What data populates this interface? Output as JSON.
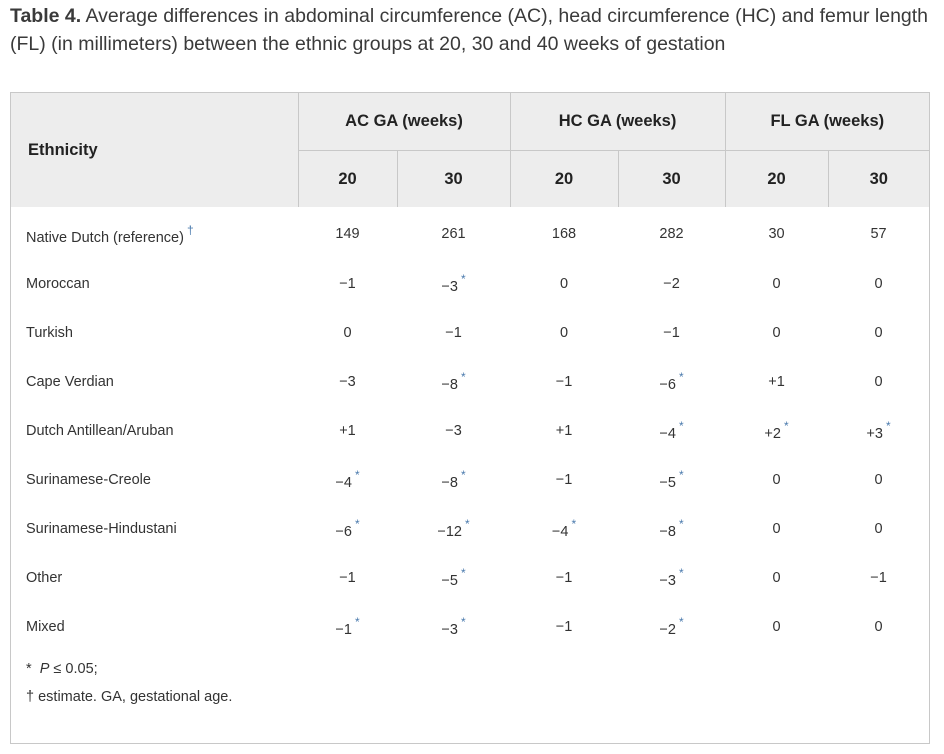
{
  "caption": {
    "label": "Table 4.",
    "text": " Average differences in abdominal circumference (AC), head circumference (HC) and femur length (FL) (in millimeters) between the ethnic groups at 20, 30 and 40 weeks of gestation"
  },
  "table": {
    "ethnicity_header": "Ethnicity",
    "groups": [
      "AC GA (weeks)",
      "HC GA (weeks)",
      "FL GA (weeks)"
    ],
    "weeks": [
      "20",
      "30",
      "20",
      "30",
      "20",
      "30"
    ],
    "rows": [
      {
        "ethnicity": "Native Dutch (reference)",
        "eth_mark": "†",
        "cells": [
          {
            "v": "149",
            "m": ""
          },
          {
            "v": "261",
            "m": ""
          },
          {
            "v": "168",
            "m": ""
          },
          {
            "v": "282",
            "m": ""
          },
          {
            "v": "30",
            "m": ""
          },
          {
            "v": "57",
            "m": ""
          }
        ]
      },
      {
        "ethnicity": "Moroccan",
        "eth_mark": "",
        "cells": [
          {
            "v": "−1",
            "m": ""
          },
          {
            "v": "−3",
            "m": "*"
          },
          {
            "v": "0",
            "m": ""
          },
          {
            "v": "−2",
            "m": ""
          },
          {
            "v": "0",
            "m": ""
          },
          {
            "v": "0",
            "m": ""
          }
        ]
      },
      {
        "ethnicity": "Turkish",
        "eth_mark": "",
        "cells": [
          {
            "v": "0",
            "m": ""
          },
          {
            "v": "−1",
            "m": ""
          },
          {
            "v": "0",
            "m": ""
          },
          {
            "v": "−1",
            "m": ""
          },
          {
            "v": "0",
            "m": ""
          },
          {
            "v": "0",
            "m": ""
          }
        ]
      },
      {
        "ethnicity": "Cape Verdian",
        "eth_mark": "",
        "cells": [
          {
            "v": "−3",
            "m": ""
          },
          {
            "v": "−8",
            "m": "*"
          },
          {
            "v": "−1",
            "m": ""
          },
          {
            "v": "−6",
            "m": "*"
          },
          {
            "v": "+1",
            "m": ""
          },
          {
            "v": "0",
            "m": ""
          }
        ]
      },
      {
        "ethnicity": "Dutch Antillean/Aruban",
        "eth_mark": "",
        "cells": [
          {
            "v": "+1",
            "m": ""
          },
          {
            "v": "−3",
            "m": ""
          },
          {
            "v": "+1",
            "m": ""
          },
          {
            "v": "−4",
            "m": "*"
          },
          {
            "v": "+2",
            "m": "*"
          },
          {
            "v": "+3",
            "m": "*"
          }
        ]
      },
      {
        "ethnicity": "Surinamese-Creole",
        "eth_mark": "",
        "cells": [
          {
            "v": "−4",
            "m": "*"
          },
          {
            "v": "−8",
            "m": "*"
          },
          {
            "v": "−1",
            "m": ""
          },
          {
            "v": "−5",
            "m": "*"
          },
          {
            "v": "0",
            "m": ""
          },
          {
            "v": "0",
            "m": ""
          }
        ]
      },
      {
        "ethnicity": "Surinamese-Hindustani",
        "eth_mark": "",
        "cells": [
          {
            "v": "−6",
            "m": "*"
          },
          {
            "v": "−12",
            "m": "*"
          },
          {
            "v": "−4",
            "m": "*"
          },
          {
            "v": "−8",
            "m": "*"
          },
          {
            "v": "0",
            "m": ""
          },
          {
            "v": "0",
            "m": ""
          }
        ]
      },
      {
        "ethnicity": "Other",
        "eth_mark": "",
        "cells": [
          {
            "v": "−1",
            "m": ""
          },
          {
            "v": "−5",
            "m": "*"
          },
          {
            "v": "−1",
            "m": ""
          },
          {
            "v": "−3",
            "m": "*"
          },
          {
            "v": "0",
            "m": ""
          },
          {
            "v": "−1",
            "m": ""
          }
        ]
      },
      {
        "ethnicity": "Mixed",
        "eth_mark": "",
        "cells": [
          {
            "v": "−1",
            "m": "*"
          },
          {
            "v": "−3",
            "m": "*"
          },
          {
            "v": "−1",
            "m": ""
          },
          {
            "v": "−2",
            "m": "*"
          },
          {
            "v": "0",
            "m": ""
          },
          {
            "v": "0",
            "m": ""
          }
        ]
      }
    ]
  },
  "footnotes": {
    "sig_symbol": "*",
    "sig_p": "P",
    "sig_text": " ≤ 0.05;",
    "dagger_symbol": "†",
    "dagger_text": " estimate. GA, gestational age."
  }
}
